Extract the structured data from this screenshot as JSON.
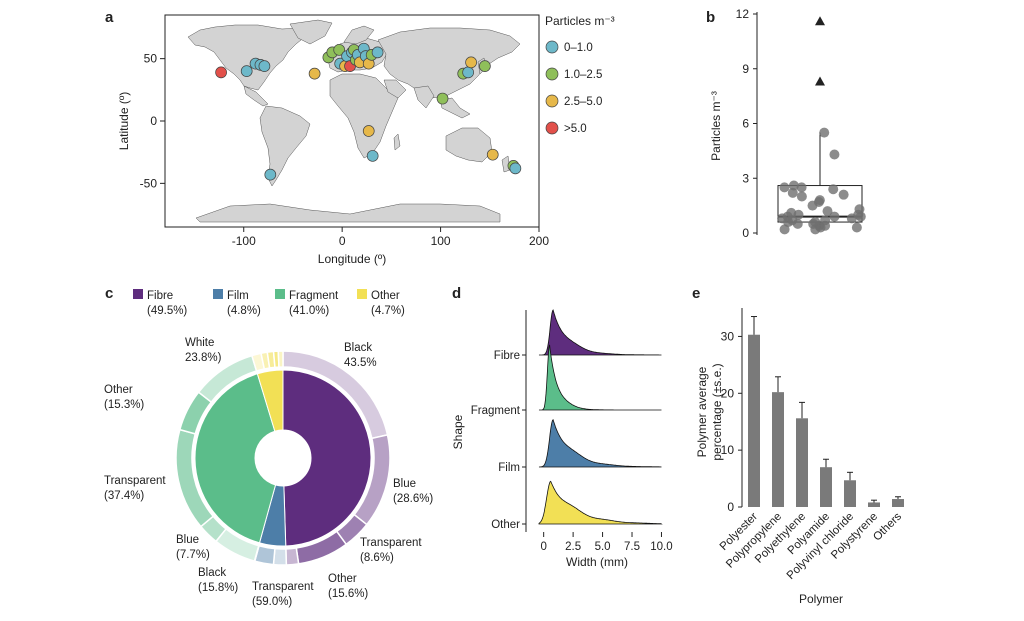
{
  "colors": {
    "teal": "#6db8c9",
    "green": "#8fbf5a",
    "yellow": "#e6b84a",
    "red": "#e2504a",
    "fibre": "#5e2d7e",
    "film": "#4d7ea8",
    "fragment": "#5bbd8a",
    "other": "#f2e055",
    "grey": "#777777",
    "land": "#d3d3d3"
  },
  "panels": {
    "a": "a",
    "b": "b",
    "c": "c",
    "d": "d",
    "e": "e"
  },
  "chart_data": [
    {
      "id": "a",
      "type": "scatter",
      "title": "",
      "xlabel": "Longitude (º)",
      "ylabel": "Latitude (º)",
      "xlim": [
        -180,
        200
      ],
      "ylim": [
        -85,
        85
      ],
      "xticks": [
        "-100",
        "0",
        "100",
        "200"
      ],
      "xtick_values": [
        -100,
        0,
        100,
        200
      ],
      "yticks": [
        "-50",
        "0",
        "50"
      ],
      "ytick_values": [
        -50,
        0,
        50
      ],
      "legend_title": "Particles m⁻³",
      "legend": [
        {
          "label": "0–1.0",
          "cls": "teal"
        },
        {
          "label": "1.0–2.5",
          "cls": "green"
        },
        {
          "label": "2.5–5.0",
          "cls": "yellow"
        },
        {
          "label": ">5.0",
          "cls": "red"
        }
      ],
      "points": [
        {
          "lon": -123,
          "lat": 39,
          "cls": "red"
        },
        {
          "lon": -97,
          "lat": 40,
          "cls": "teal"
        },
        {
          "lon": -88,
          "lat": 46,
          "cls": "teal"
        },
        {
          "lon": -83,
          "lat": 45,
          "cls": "teal"
        },
        {
          "lon": -79,
          "lat": 44,
          "cls": "teal"
        },
        {
          "lon": -73,
          "lat": -43,
          "cls": "teal"
        },
        {
          "lon": -28,
          "lat": 38,
          "cls": "yellow"
        },
        {
          "lon": -14,
          "lat": 51,
          "cls": "green"
        },
        {
          "lon": -10,
          "lat": 55,
          "cls": "green"
        },
        {
          "lon": -3,
          "lat": 57,
          "cls": "green"
        },
        {
          "lon": -2,
          "lat": 46,
          "cls": "teal"
        },
        {
          "lon": 3,
          "lat": 44,
          "cls": "yellow"
        },
        {
          "lon": 5,
          "lat": 52,
          "cls": "teal"
        },
        {
          "lon": 8,
          "lat": 44,
          "cls": "red"
        },
        {
          "lon": 10,
          "lat": 55,
          "cls": "teal"
        },
        {
          "lon": 12,
          "lat": 57,
          "cls": "green"
        },
        {
          "lon": 14,
          "lat": 49,
          "cls": "green"
        },
        {
          "lon": 16,
          "lat": 53,
          "cls": "teal"
        },
        {
          "lon": 18,
          "lat": 47,
          "cls": "yellow"
        },
        {
          "lon": 22,
          "lat": 58,
          "cls": "teal"
        },
        {
          "lon": 24,
          "lat": 52,
          "cls": "teal"
        },
        {
          "lon": 27,
          "lat": 46,
          "cls": "yellow"
        },
        {
          "lon": 30,
          "lat": 53,
          "cls": "green"
        },
        {
          "lon": 36,
          "lat": 55,
          "cls": "teal"
        },
        {
          "lon": 27,
          "lat": -8,
          "cls": "yellow"
        },
        {
          "lon": 31,
          "lat": -28,
          "cls": "teal"
        },
        {
          "lon": 102,
          "lat": 18,
          "cls": "green"
        },
        {
          "lon": 123,
          "lat": 38,
          "cls": "green"
        },
        {
          "lon": 128,
          "lat": 39,
          "cls": "teal"
        },
        {
          "lon": 131,
          "lat": 47,
          "cls": "yellow"
        },
        {
          "lon": 145,
          "lat": 44,
          "cls": "green"
        },
        {
          "lon": 153,
          "lat": -27,
          "cls": "yellow"
        },
        {
          "lon": 174,
          "lat": -36,
          "cls": "green"
        },
        {
          "lon": 176,
          "lat": -38,
          "cls": "teal"
        }
      ]
    },
    {
      "id": "b",
      "type": "box",
      "ylabel": "Particles m⁻³",
      "ylim": [
        0,
        12
      ],
      "yticks": [
        "0",
        "3",
        "6",
        "9",
        "12"
      ],
      "ytick_values": [
        0,
        3,
        6,
        9,
        12
      ],
      "box": {
        "q1": 0.6,
        "median": 0.9,
        "q3": 2.6,
        "whisker_low": 0.2,
        "whisker_high": 5.5
      },
      "outliers": [
        8.3,
        11.6
      ],
      "jitter": [
        0.4,
        0.7,
        0.9,
        1.0,
        0.6,
        0.3,
        0.2,
        0.8,
        1.2,
        1.5,
        2.0,
        2.1,
        2.4,
        2.5,
        1.8,
        0.5,
        0.9,
        1.1,
        0.4,
        1.7,
        2.2,
        0.8,
        0.3,
        1.3,
        0.6,
        0.2,
        1.0,
        2.6,
        0.5,
        5.5,
        4.3,
        2.5,
        0.7,
        0.9
      ]
    },
    {
      "id": "c",
      "type": "pie",
      "legend": [
        {
          "label": "Fibre",
          "pct": "(49.5%)",
          "cls": "fibre"
        },
        {
          "label": "Film",
          "pct": "(4.8%)",
          "cls": "film"
        },
        {
          "label": "Fragment",
          "pct": "(41.0%)",
          "cls": "fragment"
        },
        {
          "label": "Other",
          "pct": "(4.7%)",
          "cls": "other"
        }
      ],
      "inner": [
        {
          "name": "Fibre",
          "value": 49.5,
          "cls": "fibre"
        },
        {
          "name": "Film",
          "value": 4.8,
          "cls": "film"
        },
        {
          "name": "Fragment",
          "value": 41.0,
          "cls": "fragment"
        },
        {
          "name": "Other",
          "value": 4.7,
          "cls": "other"
        }
      ],
      "outer_shares": {
        "fibre": [
          43.5,
          28.6,
          8.6,
          15.6,
          3.7
        ],
        "film": [
          40.0,
          59.0,
          1.0
        ],
        "fragment": [
          15.8,
          7.7,
          37.4,
          15.3,
          23.8
        ],
        "other": [
          30,
          20,
          20,
          15,
          15
        ]
      },
      "labels": [
        {
          "name": "Black",
          "pct": "43.5%",
          "paren": false
        },
        {
          "name": "Blue",
          "pct": "(28.6%)",
          "paren": true
        },
        {
          "name": "Transparent",
          "pct": "(8.6%)",
          "paren": true
        },
        {
          "name": "Other",
          "pct": "(15.6%)",
          "paren": true
        },
        {
          "name": "Transparent",
          "pct": "(59.0%)",
          "paren": true
        },
        {
          "name": "Black",
          "pct": "(15.8%)",
          "paren": true
        },
        {
          "name": "Blue",
          "pct": "(7.7%)",
          "paren": true
        },
        {
          "name": "Transparent",
          "pct": "(37.4%)",
          "paren": true
        },
        {
          "name": "Other",
          "pct": "(15.3%)",
          "paren": true
        },
        {
          "name": "White",
          "pct": "23.8%)",
          "paren": false
        }
      ]
    },
    {
      "id": "d",
      "type": "ridgeline",
      "xlabel": "Width (mm)",
      "ylabel": "Shape",
      "xlim": [
        -1.5,
        10.3
      ],
      "xticks": [
        "0",
        "2.5",
        "5.0",
        "7.5",
        "10.0"
      ],
      "xtick_values": [
        0,
        2.5,
        5.0,
        7.5,
        10.0
      ],
      "series": [
        {
          "name": "Fibre",
          "cls": "fibre",
          "peak": 0.8,
          "height": 1.0,
          "tail": 1.6,
          "width": 0.25
        },
        {
          "name": "Fragment",
          "cls": "fragment",
          "peak": 0.5,
          "height": 1.45,
          "tail": 0.9,
          "width": 0.18
        },
        {
          "name": "Film",
          "cls": "film",
          "peak": 0.8,
          "height": 1.05,
          "tail": 1.9,
          "width": 0.3
        },
        {
          "name": "Other",
          "cls": "other",
          "peak": 0.6,
          "height": 0.95,
          "tail": 2.4,
          "width": 0.35
        }
      ]
    },
    {
      "id": "e",
      "type": "bar",
      "xlabel": "Polymer",
      "ylabel_lines": [
        "Polymer average",
        "percentage (±s.e.)"
      ],
      "ylim": [
        0,
        35
      ],
      "yticks": [
        "0",
        "10",
        "20",
        "30"
      ],
      "ytick_values": [
        0,
        10,
        20,
        30
      ],
      "categories": [
        "Polyester",
        "Polypropylene",
        "Polyethylene",
        "Polyamide",
        "Polyvinyl chloride",
        "Polystyrene",
        "Others"
      ],
      "values": [
        30.3,
        20.2,
        15.6,
        7.0,
        4.7,
        0.8,
        1.4
      ],
      "errors": [
        3.2,
        2.7,
        2.8,
        1.4,
        1.4,
        0.4,
        0.4
      ]
    }
  ]
}
